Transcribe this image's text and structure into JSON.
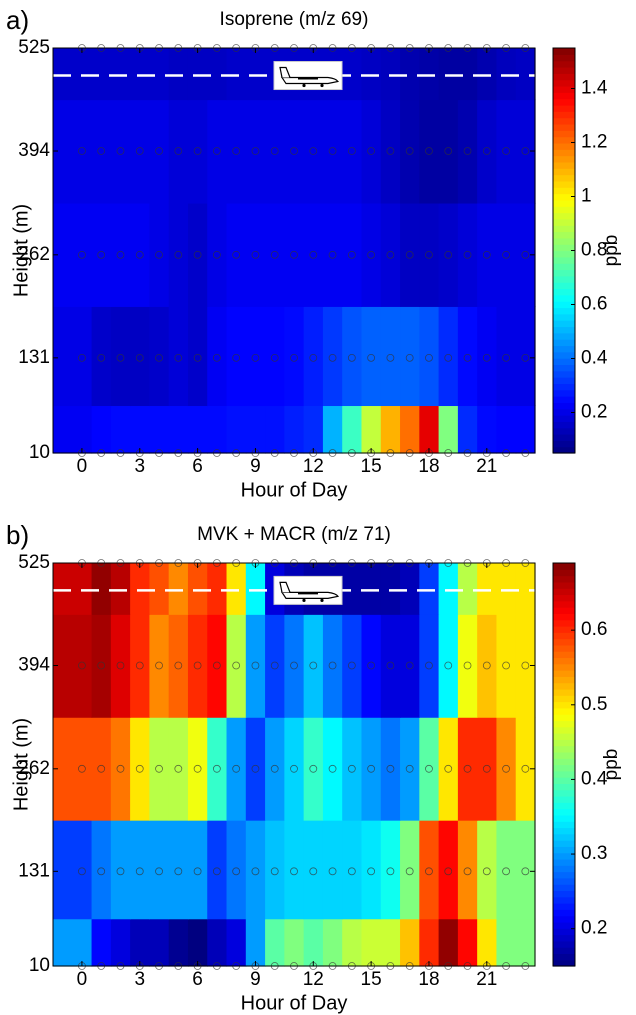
{
  "chart_data": [
    {
      "type": "contour",
      "panel_label": "a)",
      "title": "Isoprene (m/z 69)",
      "xlabel": "Hour of Day",
      "ylabel": "Height (m)",
      "x": [
        0,
        1,
        2,
        3,
        4,
        5,
        6,
        7,
        8,
        9,
        10,
        11,
        12,
        13,
        14,
        15,
        16,
        17,
        18,
        19,
        20,
        21,
        22,
        23
      ],
      "y": [
        10,
        131,
        262,
        394,
        525
      ],
      "z": [
        [
          0.22,
          0.24,
          0.25,
          0.25,
          0.25,
          0.25,
          0.25,
          0.25,
          0.26,
          0.26,
          0.26,
          0.28,
          0.3,
          0.5,
          0.7,
          0.9,
          1.1,
          1.2,
          1.4,
          0.8,
          0.3,
          0.25,
          0.24,
          0.24
        ],
        [
          0.2,
          0.16,
          0.15,
          0.15,
          0.16,
          0.18,
          0.16,
          0.22,
          0.24,
          0.24,
          0.24,
          0.25,
          0.28,
          0.32,
          0.36,
          0.38,
          0.38,
          0.38,
          0.36,
          0.3,
          0.25,
          0.22,
          0.2,
          0.2
        ],
        [
          0.22,
          0.22,
          0.22,
          0.22,
          0.2,
          0.18,
          0.16,
          0.2,
          0.22,
          0.22,
          0.22,
          0.22,
          0.22,
          0.22,
          0.22,
          0.2,
          0.18,
          0.15,
          0.15,
          0.16,
          0.18,
          0.2,
          0.2,
          0.2
        ],
        [
          0.2,
          0.2,
          0.2,
          0.2,
          0.2,
          0.18,
          0.18,
          0.2,
          0.2,
          0.2,
          0.2,
          0.2,
          0.2,
          0.2,
          0.2,
          0.18,
          0.15,
          0.12,
          0.1,
          0.1,
          0.12,
          0.16,
          0.18,
          0.18
        ],
        [
          0.16,
          0.16,
          0.16,
          0.16,
          0.16,
          0.15,
          0.15,
          0.15,
          0.16,
          0.16,
          0.16,
          0.16,
          0.16,
          0.16,
          0.16,
          0.15,
          0.14,
          0.12,
          0.11,
          0.1,
          0.1,
          0.12,
          0.14,
          0.15
        ]
      ],
      "xlim": [
        -1.5,
        23.5
      ],
      "ylim": [
        10,
        525
      ],
      "xticks": [
        0,
        3,
        6,
        9,
        12,
        15,
        18,
        21
      ],
      "yticks": [
        10,
        131,
        262,
        394,
        525
      ],
      "colormap": "jet",
      "colorbar": {
        "label": "ppb",
        "clim": [
          0.05,
          1.55
        ],
        "ticks": [
          0.2,
          0.4,
          0.6,
          0.8,
          1,
          1.2,
          1.4
        ]
      },
      "aircraft_height": 490
    },
    {
      "type": "contour",
      "panel_label": "b)",
      "title": "MVK + MACR (m/z 71)",
      "xlabel": "Hour of Day",
      "ylabel": "Height (m)",
      "x": [
        0,
        1,
        2,
        3,
        4,
        5,
        6,
        7,
        8,
        9,
        10,
        11,
        12,
        13,
        14,
        15,
        16,
        17,
        18,
        19,
        20,
        21,
        22,
        23
      ],
      "y": [
        10,
        131,
        262,
        394,
        525
      ],
      "z": [
        [
          0.3,
          0.22,
          0.2,
          0.18,
          0.18,
          0.16,
          0.15,
          0.18,
          0.2,
          0.3,
          0.4,
          0.42,
          0.4,
          0.42,
          0.45,
          0.46,
          0.46,
          0.52,
          0.6,
          0.68,
          0.62,
          0.5,
          0.42,
          0.42
        ],
        [
          0.25,
          0.28,
          0.3,
          0.3,
          0.3,
          0.3,
          0.3,
          0.25,
          0.28,
          0.3,
          0.32,
          0.33,
          0.33,
          0.33,
          0.33,
          0.34,
          0.36,
          0.42,
          0.58,
          0.62,
          0.55,
          0.45,
          0.42,
          0.42
        ],
        [
          0.58,
          0.58,
          0.56,
          0.5,
          0.45,
          0.45,
          0.48,
          0.38,
          0.3,
          0.25,
          0.3,
          0.33,
          0.38,
          0.35,
          0.32,
          0.3,
          0.28,
          0.3,
          0.4,
          0.5,
          0.6,
          0.6,
          0.55,
          0.5
        ],
        [
          0.66,
          0.67,
          0.64,
          0.6,
          0.55,
          0.57,
          0.6,
          0.62,
          0.45,
          0.3,
          0.25,
          0.28,
          0.32,
          0.28,
          0.25,
          0.22,
          0.2,
          0.2,
          0.25,
          0.35,
          0.48,
          0.52,
          0.5,
          0.5
        ],
        [
          0.65,
          0.68,
          0.66,
          0.6,
          0.58,
          0.55,
          0.58,
          0.6,
          0.5,
          0.35,
          0.2,
          0.18,
          0.17,
          0.17,
          0.17,
          0.17,
          0.17,
          0.18,
          0.25,
          0.35,
          0.45,
          0.5,
          0.5,
          0.5
        ]
      ],
      "xlim": [
        -1.5,
        23.5
      ],
      "ylim": [
        10,
        525
      ],
      "xticks": [
        0,
        3,
        6,
        9,
        12,
        15,
        18,
        21
      ],
      "yticks": [
        10,
        131,
        262,
        394,
        525
      ],
      "colormap": "jet",
      "colorbar": {
        "label": "ppb",
        "clim": [
          0.15,
          0.69
        ],
        "ticks": [
          0.2,
          0.3,
          0.4,
          0.5,
          0.6
        ]
      },
      "aircraft_height": 490
    }
  ]
}
